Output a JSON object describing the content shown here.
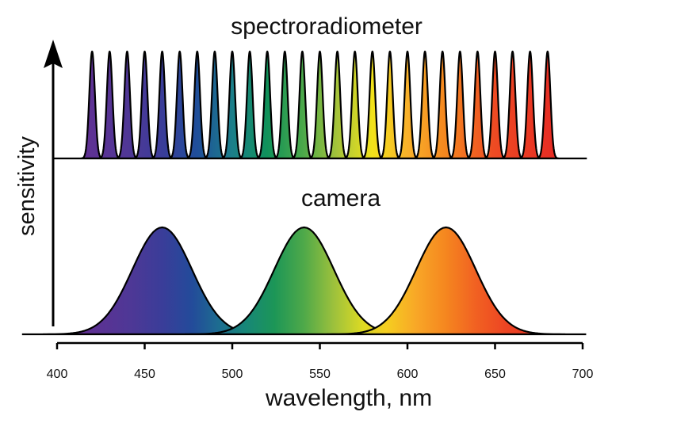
{
  "chart_data": [
    {
      "type": "peaks",
      "title": "spectroradiometer",
      "x": [
        420,
        430,
        440,
        450,
        460,
        470,
        480,
        490,
        500,
        510,
        520,
        530,
        540,
        550,
        560,
        570,
        580,
        590,
        600,
        610,
        620,
        630,
        640,
        650,
        660,
        670,
        680
      ],
      "sigma": 1.6
    },
    {
      "type": "peaks",
      "title": "camera",
      "x": [
        460,
        541,
        622
      ],
      "sigma": 17
    }
  ],
  "axes": {
    "x_label": "wavelength, nm",
    "y_label": "sensitivity",
    "xlim": [
      400,
      700
    ],
    "xticks": [
      400,
      450,
      500,
      550,
      600,
      650,
      700
    ]
  }
}
